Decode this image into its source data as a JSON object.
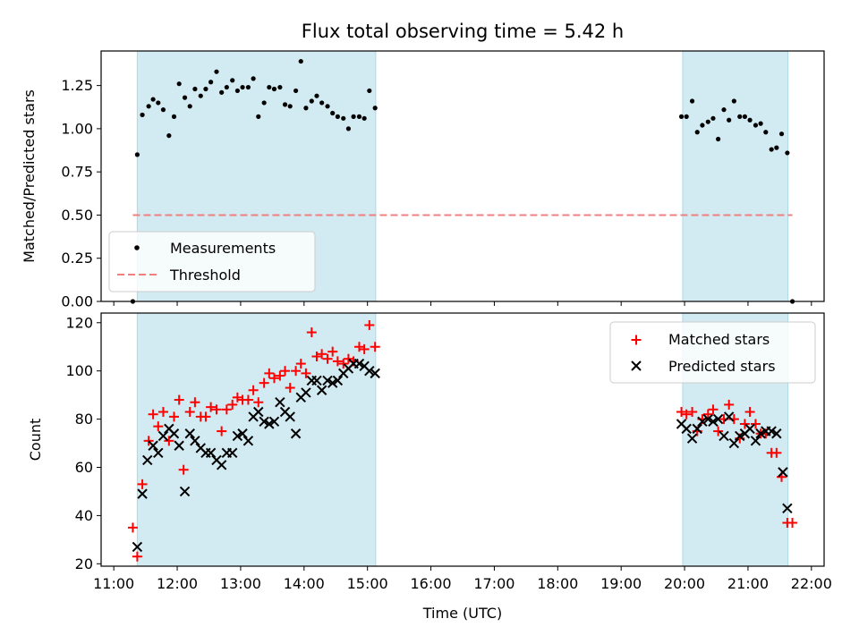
{
  "title": "Flux total observing time = 5.42 h",
  "colors": {
    "span": "#add8e6",
    "threshold": "#f08080",
    "matched": "#ff0000",
    "predicted": "#000000",
    "measure": "#000000"
  },
  "chart_data": [
    {
      "type": "scatter",
      "ylabel": "Matched/Predicted stars",
      "xlim": [
        10.8,
        22.2
      ],
      "ylim": [
        0,
        1.45
      ],
      "yticks": [
        "0.00",
        "0.25",
        "0.50",
        "0.75",
        "1.00",
        "1.25"
      ],
      "ytick_values": [
        0,
        0.25,
        0.5,
        0.75,
        1.0,
        1.25
      ],
      "observing_spans": [
        [
          11.37,
          15.13
        ],
        [
          19.97,
          21.63
        ]
      ],
      "legend": {
        "location": "lower-left",
        "entries": [
          "Measurements",
          "Threshold"
        ]
      },
      "threshold": {
        "name": "Threshold",
        "value": 0.5,
        "x_range": [
          11.3,
          21.7
        ]
      },
      "series": [
        {
          "name": "Measurements",
          "x": [
            11.3,
            11.37,
            11.45,
            11.55,
            11.62,
            11.7,
            11.78,
            11.87,
            11.95,
            12.03,
            12.12,
            12.2,
            12.28,
            12.37,
            12.45,
            12.53,
            12.62,
            12.7,
            12.78,
            12.87,
            12.95,
            13.03,
            13.12,
            13.2,
            13.28,
            13.37,
            13.45,
            13.53,
            13.62,
            13.7,
            13.78,
            13.87,
            13.95,
            14.03,
            14.12,
            14.2,
            14.28,
            14.37,
            14.45,
            14.53,
            14.62,
            14.7,
            14.78,
            14.87,
            14.95,
            15.03,
            15.12,
            19.95,
            20.03,
            20.12,
            20.2,
            20.28,
            20.37,
            20.45,
            20.53,
            20.62,
            20.7,
            20.78,
            20.87,
            20.95,
            21.03,
            21.12,
            21.2,
            21.28,
            21.37,
            21.45,
            21.53,
            21.62,
            21.7
          ],
          "y": [
            0.0,
            0.85,
            1.08,
            1.13,
            1.17,
            1.15,
            1.11,
            0.96,
            1.07,
            1.26,
            1.18,
            1.13,
            1.23,
            1.19,
            1.23,
            1.27,
            1.33,
            1.21,
            1.24,
            1.28,
            1.22,
            1.24,
            1.24,
            1.29,
            1.07,
            1.15,
            1.24,
            1.23,
            1.24,
            1.14,
            1.13,
            1.22,
            1.39,
            1.12,
            1.16,
            1.19,
            1.15,
            1.13,
            1.09,
            1.07,
            1.06,
            1.0,
            1.07,
            1.07,
            1.06,
            1.22,
            1.12,
            1.07,
            1.07,
            1.16,
            0.98,
            1.02,
            1.04,
            1.06,
            0.94,
            1.11,
            1.05,
            1.16,
            1.07,
            1.07,
            1.05,
            1.02,
            1.03,
            0.98,
            0.88,
            0.89,
            0.97,
            0.86,
            0.0
          ]
        }
      ]
    },
    {
      "type": "scatter",
      "xlabel": "Time (UTC)",
      "ylabel": "Count",
      "xlim": [
        10.8,
        22.2
      ],
      "ylim": [
        19,
        124
      ],
      "xticks": [
        "11:00",
        "12:00",
        "13:00",
        "14:00",
        "15:00",
        "16:00",
        "17:00",
        "18:00",
        "19:00",
        "20:00",
        "21:00",
        "22:00"
      ],
      "xtick_values": [
        11,
        12,
        13,
        14,
        15,
        16,
        17,
        18,
        19,
        20,
        21,
        22
      ],
      "yticks": [
        "20",
        "40",
        "60",
        "80",
        "100",
        "120"
      ],
      "ytick_values": [
        20,
        40,
        60,
        80,
        100,
        120
      ],
      "observing_spans": [
        [
          11.37,
          15.13
        ],
        [
          19.97,
          21.63
        ]
      ],
      "legend": {
        "location": "upper-right",
        "entries": [
          "Matched stars",
          "Predicted stars"
        ]
      },
      "series": [
        {
          "name": "Matched stars",
          "marker": "plus",
          "x": [
            11.3,
            11.37,
            11.45,
            11.55,
            11.62,
            11.7,
            11.78,
            11.87,
            11.95,
            12.03,
            12.1,
            12.2,
            12.28,
            12.37,
            12.45,
            12.53,
            12.62,
            12.7,
            12.78,
            12.87,
            12.95,
            13.03,
            13.12,
            13.2,
            13.28,
            13.37,
            13.45,
            13.53,
            13.62,
            13.7,
            13.78,
            13.87,
            13.95,
            14.03,
            14.12,
            14.2,
            14.28,
            14.37,
            14.45,
            14.53,
            14.62,
            14.7,
            14.78,
            14.87,
            14.95,
            15.03,
            15.12,
            19.95,
            20.03,
            20.12,
            20.2,
            20.28,
            20.37,
            20.45,
            20.53,
            20.62,
            20.7,
            20.78,
            20.87,
            20.95,
            21.03,
            21.12,
            21.2,
            21.28,
            21.37,
            21.45,
            21.53,
            21.62,
            21.7
          ],
          "y": [
            35,
            23,
            53,
            71,
            82,
            77,
            83,
            71,
            81,
            88,
            59,
            83,
            87,
            81,
            81,
            85,
            84,
            75,
            84,
            86,
            89,
            88,
            88,
            92,
            87,
            95,
            99,
            97,
            98,
            100,
            93,
            100,
            103,
            99,
            116,
            106,
            107,
            105,
            108,
            104,
            103,
            105,
            104,
            110,
            109,
            119,
            110,
            83,
            82,
            83,
            75,
            80,
            82,
            84,
            75,
            80,
            86,
            80,
            72,
            78,
            83,
            78,
            74,
            74,
            66,
            66,
            56,
            37,
            37
          ]
        },
        {
          "name": "Predicted stars",
          "marker": "x",
          "x": [
            11.37,
            11.45,
            11.53,
            11.62,
            11.7,
            11.78,
            11.87,
            11.95,
            12.03,
            12.12,
            12.2,
            12.28,
            12.37,
            12.45,
            12.53,
            12.62,
            12.7,
            12.78,
            12.87,
            12.95,
            13.03,
            13.12,
            13.2,
            13.28,
            13.37,
            13.45,
            13.53,
            13.62,
            13.7,
            13.78,
            13.87,
            13.95,
            14.03,
            14.12,
            14.2,
            14.28,
            14.37,
            14.45,
            14.53,
            14.62,
            14.7,
            14.78,
            14.87,
            14.95,
            15.03,
            15.12,
            19.95,
            20.03,
            20.12,
            20.2,
            20.28,
            20.37,
            20.45,
            20.53,
            20.62,
            20.7,
            20.78,
            20.87,
            20.95,
            21.03,
            21.12,
            21.2,
            21.28,
            21.37,
            21.45,
            21.55,
            21.62
          ],
          "y": [
            27,
            49,
            63,
            69,
            66,
            73,
            76,
            74,
            69,
            50,
            74,
            71,
            68,
            66,
            66,
            63,
            61,
            66,
            66,
            73,
            74,
            71,
            81,
            83,
            79,
            78,
            79,
            87,
            83,
            81,
            74,
            89,
            91,
            96,
            96,
            92,
            96,
            95,
            96,
            99,
            101,
            103,
            103,
            102,
            100,
            99,
            78,
            76,
            72,
            76,
            79,
            80,
            79,
            80,
            73,
            81,
            70,
            73,
            74,
            76,
            71,
            74,
            75,
            75,
            74,
            58,
            43
          ]
        }
      ]
    }
  ]
}
